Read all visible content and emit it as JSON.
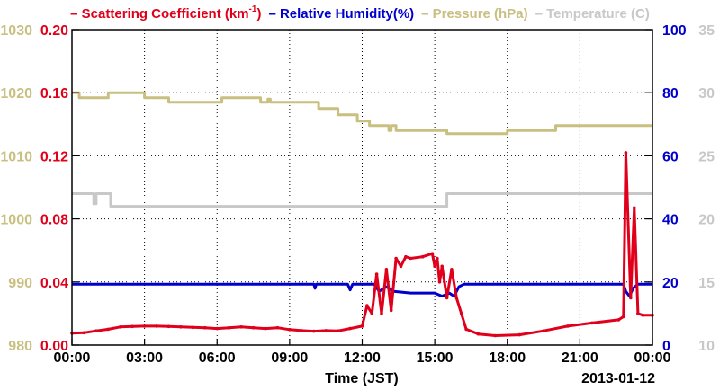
{
  "chart_data": {
    "type": "line",
    "date_label": "2013-01-12",
    "xlabel": "Time (JST)",
    "x_ticks": [
      "00:00",
      "03:00",
      "06:00",
      "09:00",
      "12:00",
      "15:00",
      "18:00",
      "21:00",
      "00:00"
    ],
    "xlim": [
      0,
      24
    ],
    "grid": true,
    "legend": {
      "position": "top"
    },
    "axes": [
      {
        "side": "left-outer",
        "series": "Pressure (hPa)",
        "lim": [
          980,
          1030
        ],
        "ticks": [
          "980",
          "990",
          "1000",
          "1010",
          "1020",
          "1030"
        ],
        "color": "#c9bf80"
      },
      {
        "side": "left-inner",
        "series": "Scattering Coefficient (km-1)",
        "lim": [
          0,
          0.2
        ],
        "ticks": [
          "0.00",
          "0.04",
          "0.08",
          "0.12",
          "0.16",
          "0.20"
        ],
        "color": "#e0001b"
      },
      {
        "side": "right-inner",
        "series": "Relative Humidity(%)",
        "lim": [
          0,
          100
        ],
        "ticks": [
          "0",
          "20",
          "40",
          "60",
          "80",
          "100"
        ],
        "color": "#0000cc"
      },
      {
        "side": "right-outer",
        "series": "Temperature (C)",
        "lim": [
          10,
          35
        ],
        "ticks": [
          "10",
          "15",
          "20",
          "25",
          "30",
          "35"
        ],
        "color": "#c8c8c8"
      }
    ],
    "legend_items": [
      {
        "text": "– Scattering Coefficient (km",
        "sup": "-1",
        "close": ")",
        "color": "#e0001b"
      },
      {
        "text": "– Relative Humidity(%)",
        "color": "#0000cc"
      },
      {
        "text": "– Pressure (hPa)",
        "color": "#c9bf80"
      },
      {
        "text": "– Temperature (C)",
        "color": "#c8c8c8"
      }
    ],
    "series": [
      {
        "name": "Pressure (hPa)",
        "axis": 0,
        "color": "#c9bf80",
        "step": true,
        "points": [
          [
            0,
            1020
          ],
          [
            0.3,
            1019.2
          ],
          [
            1.5,
            1020
          ],
          [
            3.0,
            1019.2
          ],
          [
            4.0,
            1018.5
          ],
          [
            6.2,
            1019.2
          ],
          [
            7.8,
            1018.5
          ],
          [
            8.1,
            1019
          ],
          [
            8.2,
            1018.5
          ],
          [
            10.2,
            1017.5
          ],
          [
            11.0,
            1016.5
          ],
          [
            11.8,
            1015.5
          ],
          [
            12.3,
            1014.8
          ],
          [
            13.0,
            1014.8
          ],
          [
            13.1,
            1014
          ],
          [
            13.2,
            1014.8
          ],
          [
            13.4,
            1014
          ],
          [
            15.0,
            1014
          ],
          [
            15.5,
            1013.5
          ],
          [
            18.0,
            1014
          ],
          [
            20.0,
            1014.8
          ],
          [
            24,
            1014.8
          ]
        ]
      },
      {
        "name": "Temperature (C)",
        "axis": 3,
        "color": "#c8c8c8",
        "step": true,
        "points": [
          [
            0,
            22
          ],
          [
            0.8,
            22
          ],
          [
            0.9,
            21.2
          ],
          [
            1.0,
            22
          ],
          [
            1.5,
            22
          ],
          [
            1.6,
            21
          ],
          [
            15.3,
            21
          ],
          [
            15.5,
            22
          ],
          [
            24,
            22
          ]
        ]
      },
      {
        "name": "Relative Humidity(%)",
        "axis": 2,
        "color": "#0000cc",
        "points": [
          [
            0,
            19.3
          ],
          [
            10,
            19.3
          ],
          [
            10.05,
            18
          ],
          [
            10.1,
            19.3
          ],
          [
            11.4,
            19.3
          ],
          [
            11.5,
            17.5
          ],
          [
            11.6,
            19.3
          ],
          [
            12.5,
            19.3
          ],
          [
            12.7,
            17
          ],
          [
            13.0,
            18.5
          ],
          [
            13.3,
            17
          ],
          [
            14.0,
            16.5
          ],
          [
            15.0,
            16.5
          ],
          [
            15.3,
            15.5
          ],
          [
            15.6,
            16.5
          ],
          [
            15.8,
            15.5
          ],
          [
            16.0,
            18.5
          ],
          [
            16.2,
            19.3
          ],
          [
            22.8,
            19.3
          ],
          [
            22.9,
            17
          ],
          [
            23.05,
            15.5
          ],
          [
            23.2,
            18
          ],
          [
            23.4,
            19.3
          ],
          [
            24,
            19.3
          ]
        ]
      },
      {
        "name": "Scattering Coefficient (km-1)",
        "axis": 1,
        "color": "#e0001b",
        "markers": true,
        "points": [
          [
            0,
            0.0075
          ],
          [
            0.5,
            0.0078
          ],
          [
            1,
            0.009
          ],
          [
            1.5,
            0.01
          ],
          [
            2,
            0.0115
          ],
          [
            2.5,
            0.0118
          ],
          [
            3,
            0.012
          ],
          [
            3.5,
            0.012
          ],
          [
            4,
            0.0118
          ],
          [
            4.5,
            0.0115
          ],
          [
            5,
            0.0112
          ],
          [
            5.5,
            0.011
          ],
          [
            6,
            0.0105
          ],
          [
            6.5,
            0.011
          ],
          [
            7,
            0.0115
          ],
          [
            7.5,
            0.011
          ],
          [
            8,
            0.0105
          ],
          [
            8.5,
            0.011
          ],
          [
            9,
            0.0098
          ],
          [
            9.5,
            0.0092
          ],
          [
            10,
            0.0088
          ],
          [
            10.5,
            0.0092
          ],
          [
            11,
            0.009
          ],
          [
            11.5,
            0.0105
          ],
          [
            12,
            0.012
          ],
          [
            12.2,
            0.025
          ],
          [
            12.4,
            0.02
          ],
          [
            12.6,
            0.045
          ],
          [
            12.8,
            0.02
          ],
          [
            13.0,
            0.048
          ],
          [
            13.2,
            0.022
          ],
          [
            13.4,
            0.055
          ],
          [
            13.6,
            0.05
          ],
          [
            13.8,
            0.056
          ],
          [
            14.0,
            0.055
          ],
          [
            14.5,
            0.056
          ],
          [
            14.9,
            0.058
          ],
          [
            15.0,
            0.05
          ],
          [
            15.1,
            0.055
          ],
          [
            15.2,
            0.04
          ],
          [
            15.3,
            0.05
          ],
          [
            15.5,
            0.03
          ],
          [
            15.7,
            0.048
          ],
          [
            15.9,
            0.03
          ],
          [
            16.1,
            0.02
          ],
          [
            16.3,
            0.01
          ],
          [
            16.8,
            0.007
          ],
          [
            17.5,
            0.006
          ],
          [
            18.5,
            0.0065
          ],
          [
            19.5,
            0.009
          ],
          [
            20.5,
            0.012
          ],
          [
            21.5,
            0.014
          ],
          [
            22.6,
            0.016
          ],
          [
            22.8,
            0.018
          ],
          [
            22.9,
            0.122
          ],
          [
            23.1,
            0.03
          ],
          [
            23.25,
            0.087
          ],
          [
            23.4,
            0.02
          ],
          [
            23.6,
            0.019
          ],
          [
            24,
            0.019
          ]
        ]
      }
    ]
  }
}
